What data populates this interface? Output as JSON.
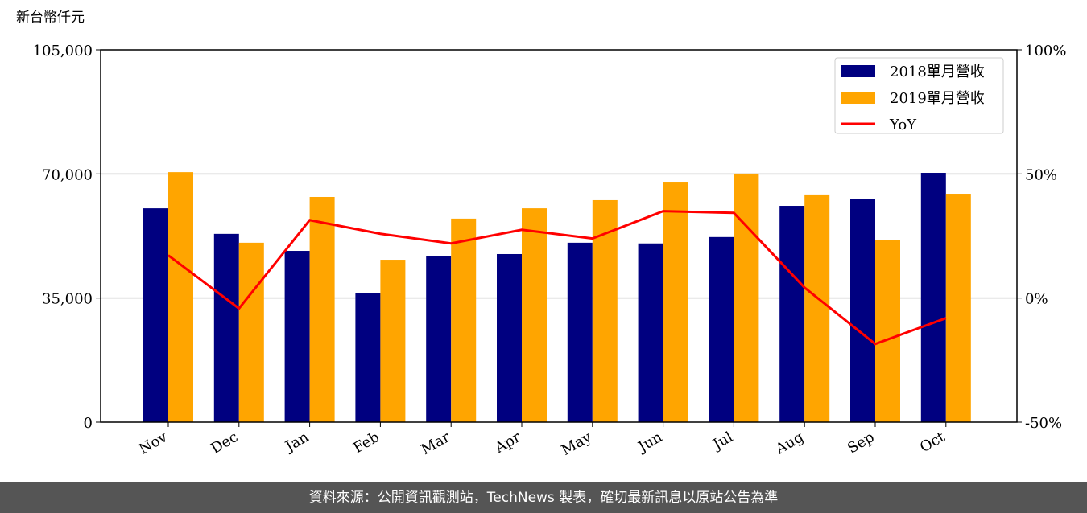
{
  "chart_data": {
    "type": "bar_line",
    "y_label": "新台幣仟元",
    "categories": [
      "Nov",
      "Dec",
      "Jan",
      "Feb",
      "Mar",
      "Apr",
      "May",
      "Jun",
      "Jul",
      "Aug",
      "Sep",
      "Oct"
    ],
    "series": [
      {
        "name": "2018單月營收",
        "color": "#000080",
        "type": "bar",
        "values": [
          60300,
          53100,
          48300,
          36300,
          46900,
          47400,
          50600,
          50400,
          52200,
          61000,
          63000,
          70300
        ]
      },
      {
        "name": "2019單月營收",
        "color": "#ffa500",
        "type": "bar",
        "values": [
          70500,
          50600,
          63500,
          45800,
          57400,
          60300,
          62600,
          67800,
          70100,
          64200,
          51300,
          64400
        ]
      },
      {
        "name": "YoY",
        "color": "#ff0000",
        "type": "line",
        "axis": "y2",
        "values": [
          17.2,
          -4.2,
          31.4,
          25.9,
          22.0,
          27.5,
          24.0,
          35.0,
          34.3,
          4.2,
          -18.5,
          -8.1
        ]
      }
    ],
    "ylim": [
      0,
      105000
    ],
    "yticks": [
      0,
      {
        "value": 35000,
        "label": "35,000"
      },
      {
        "value": 70000,
        "label": "70,000"
      },
      {
        "value": 105000,
        "label": "105,000"
      }
    ],
    "y2lim": [
      -50,
      100
    ],
    "y2ticks": [
      {
        "value": -50,
        "label": "-50%"
      },
      {
        "value": 0,
        "label": "0%"
      },
      {
        "value": 50,
        "label": "50%"
      },
      {
        "value": 100,
        "label": "100%"
      }
    ],
    "grid": true,
    "legend": "upper right",
    "footer": "資料來源：公開資訊觀測站，TechNews 製表，確切最新訊息以原站公告為準"
  }
}
